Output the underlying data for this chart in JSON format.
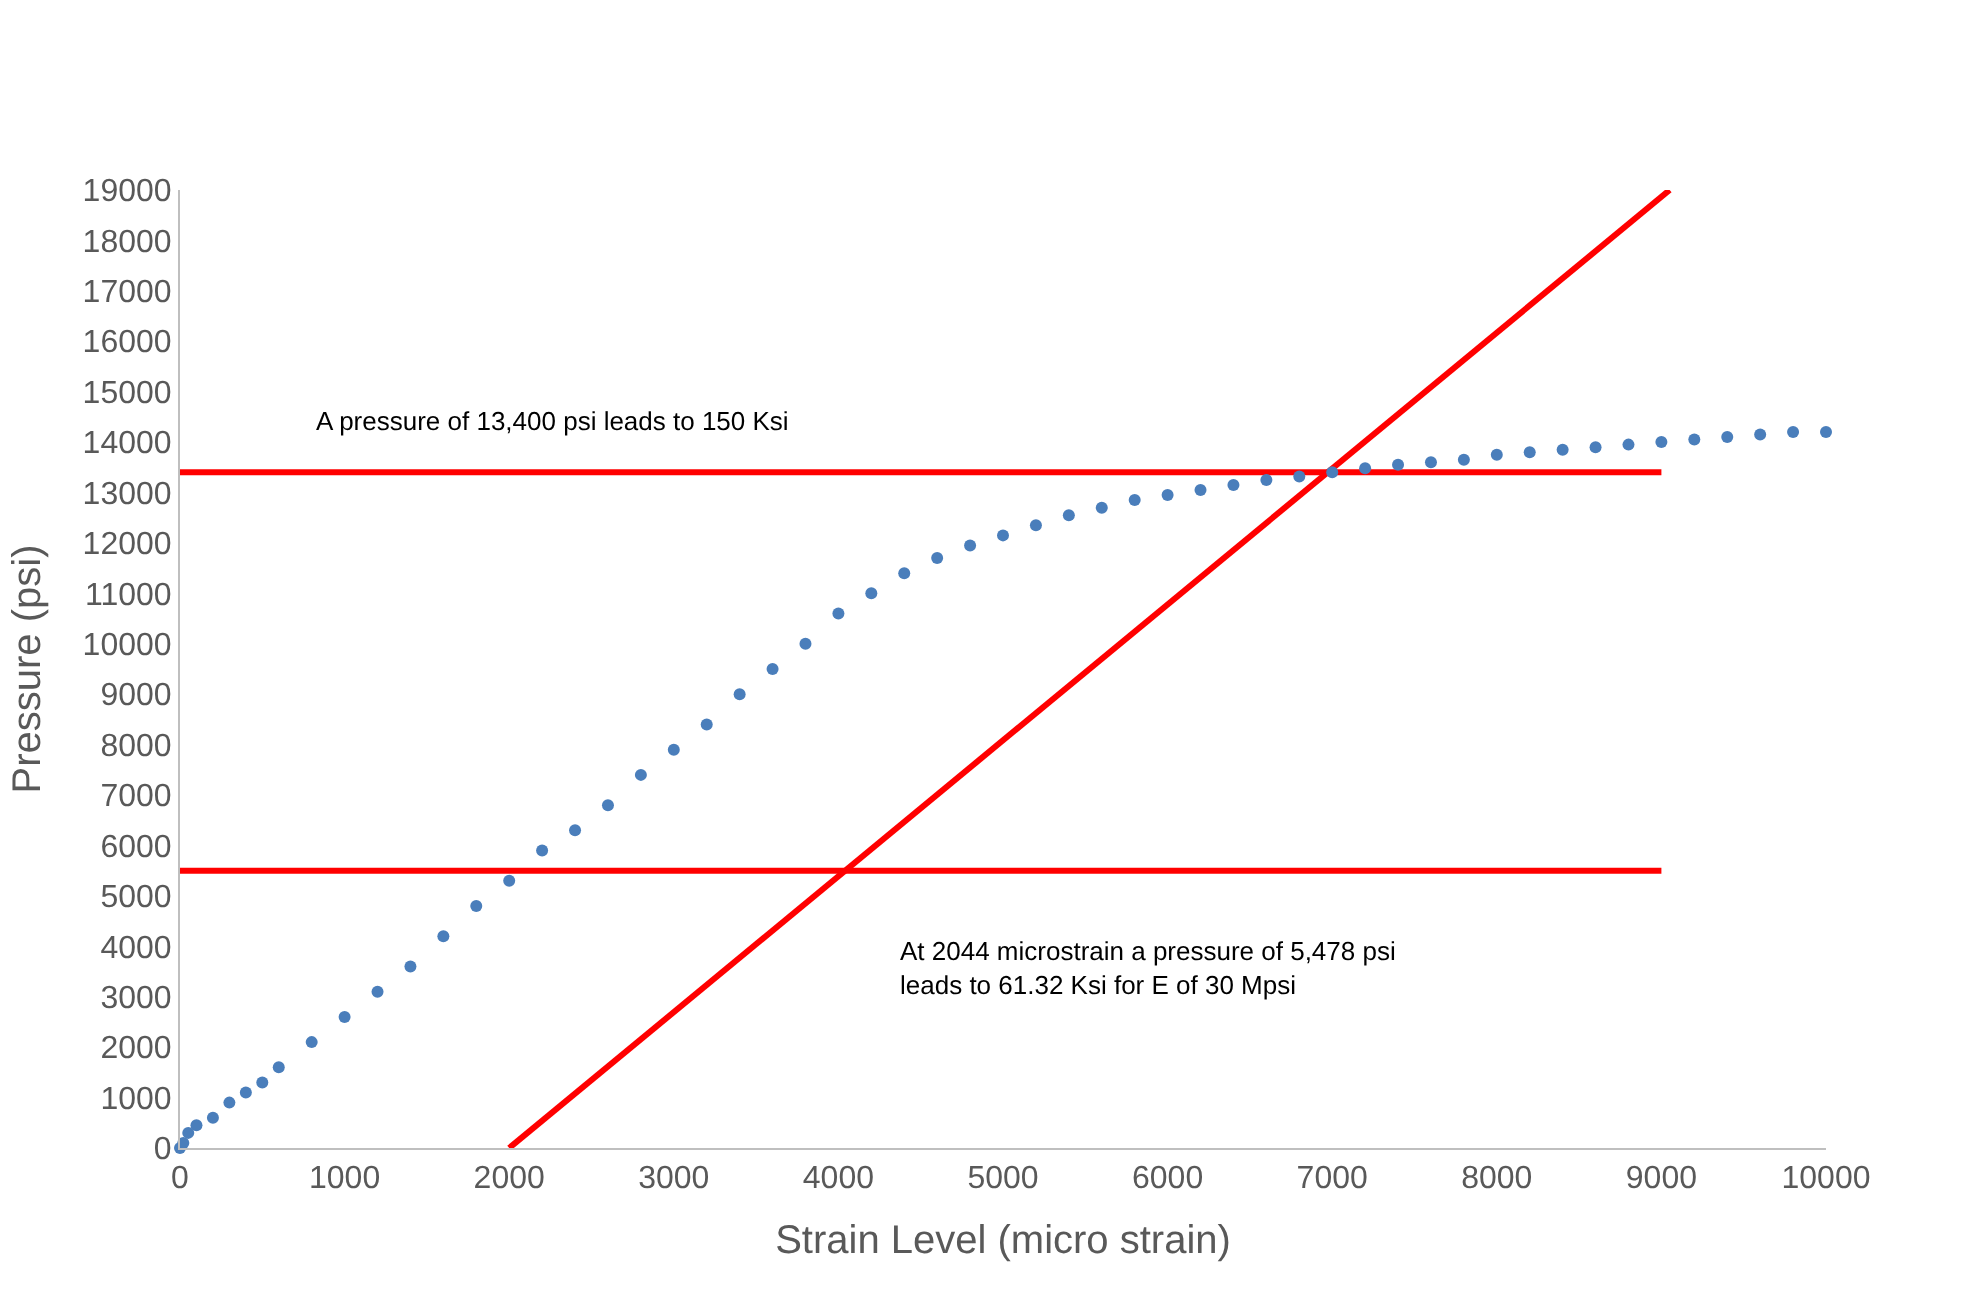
{
  "chart_data": {
    "type": "scatter",
    "xlabel": "Strain Level (micro strain)",
    "ylabel": "Pressure (psi)",
    "xlim": [
      0,
      10000
    ],
    "xticks": [
      0,
      1000,
      2000,
      3000,
      4000,
      5000,
      6000,
      7000,
      8000,
      9000,
      10000
    ],
    "ylim": [
      0,
      19000
    ],
    "yticks": [
      0,
      1000,
      2000,
      3000,
      4000,
      5000,
      6000,
      7000,
      8000,
      9000,
      10000,
      11000,
      12000,
      13000,
      14000,
      15000,
      16000,
      17000,
      18000,
      19000
    ],
    "series": [
      {
        "marker": "circle",
        "color": "#4a7ebb",
        "x": [
          0,
          20,
          50,
          100,
          200,
          300,
          400,
          500,
          600,
          800,
          1000,
          1200,
          1400,
          1600,
          1800,
          2000,
          2200,
          2400,
          2600,
          2800,
          3000,
          3200,
          3400,
          3600,
          3800,
          4000,
          4200,
          4400,
          4600,
          4800,
          5000,
          5200,
          5400,
          5600,
          5800,
          6000,
          6200,
          6400,
          6600,
          6800,
          7000,
          7200,
          7400,
          7600,
          7800,
          8000,
          8200,
          8400,
          8600,
          8800,
          9000,
          9200,
          9400,
          9600,
          9800,
          10000
        ],
        "values": [
          0,
          100,
          300,
          450,
          600,
          900,
          1100,
          1300,
          1600,
          2100,
          2600,
          3100,
          3600,
          4200,
          4800,
          5300,
          5900,
          6300,
          6800,
          7400,
          7900,
          8400,
          9000,
          9500,
          10000,
          10600,
          11000,
          11400,
          11700,
          11950,
          12150,
          12350,
          12550,
          12700,
          12850,
          12950,
          13050,
          13150,
          13250,
          13320,
          13400,
          13480,
          13550,
          13600,
          13650,
          13750,
          13800,
          13850,
          13900,
          13950,
          14000,
          14050,
          14100,
          14150,
          14200,
          14200
        ]
      },
      {
        "type": "line",
        "marker": "none",
        "line_style": "solid",
        "color": "#ff0000",
        "x": [
          2000,
          9050
        ],
        "values": [
          0,
          19000
        ]
      },
      {
        "type": "line",
        "marker": "none",
        "line_style": "solid",
        "color": "#ff0000",
        "x": [
          0,
          9000
        ],
        "values": [
          13400,
          13400
        ]
      },
      {
        "type": "line",
        "marker": "none",
        "line_style": "solid",
        "color": "#ff0000",
        "x": [
          0,
          9000
        ],
        "values": [
          5500,
          5500
        ]
      }
    ],
    "annotations": [
      "A pressure of 13,400 psi leads to 150 Ksi",
      "At 2044 microstrain a pressure of 5,478 psi\nleads to 61.32 Ksi for E of 30 Mpsi"
    ]
  }
}
